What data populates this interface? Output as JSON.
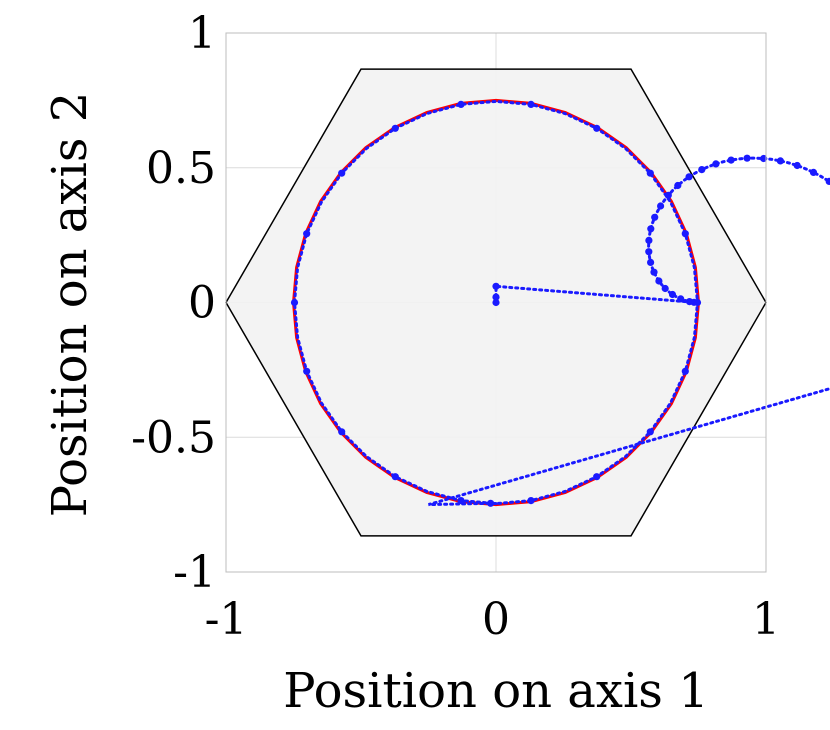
{
  "chart_data": {
    "type": "line",
    "title": "",
    "xlabel": "Position on axis 1",
    "ylabel": "Position on axis 2",
    "xlim": [
      -1,
      1
    ],
    "ylim": [
      -1,
      1
    ],
    "xticks": [
      -1,
      0,
      1
    ],
    "xtick_labels": [
      "-1",
      "0",
      "1"
    ],
    "yticks": [
      -1,
      -0.5,
      0,
      0.5,
      1
    ],
    "ytick_labels": [
      "-1",
      "-0.5",
      "0",
      "0.5",
      "1"
    ],
    "grid": true,
    "legend": "none",
    "region": {
      "shape": "hexagon",
      "fill": "#f2f2f2",
      "stroke": "#000000",
      "vertices": [
        [
          1,
          0
        ],
        [
          0.5,
          0.866
        ],
        [
          -0.5,
          0.866
        ],
        [
          -1,
          0
        ],
        [
          -0.5,
          -0.866
        ],
        [
          0.5,
          -0.866
        ]
      ]
    },
    "series": [
      {
        "style": "solid",
        "color": "#ff0000",
        "shape": "circle",
        "center": [
          0,
          0
        ],
        "radius": 0.75,
        "t_range": [
          0,
          360
        ]
      },
      {
        "style": "dotted-markers",
        "color": "#1a1aff",
        "shape": "spiral-to-circle",
        "start": [
          0,
          0
        ],
        "radius": 0.75
      }
    ]
  }
}
